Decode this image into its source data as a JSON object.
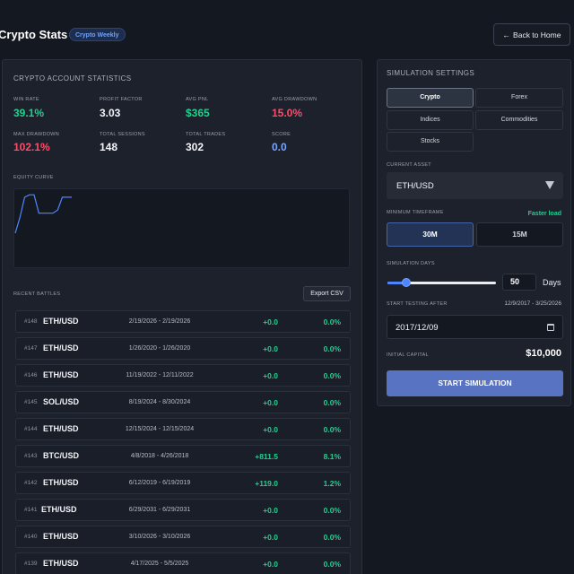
{
  "header": {
    "title": "Crypto Stats",
    "badge": "Crypto Weekly",
    "back_label": "Back to Home",
    "back_icon": "arrow-left-icon"
  },
  "stats": {
    "section_title": "CRYPTO ACCOUNT STATISTICS",
    "items": [
      {
        "label": "WIN RATE",
        "value": "39.1%",
        "color": "#1fd18f"
      },
      {
        "label": "PROFIT FACTOR",
        "value": "3.03",
        "color": "#f2f4f8"
      },
      {
        "label": "AVG PNL",
        "value": "$365",
        "color": "#1fd18f"
      },
      {
        "label": "AVG DRAWDOWN",
        "value": "15.0%",
        "color": "#ff4b6b"
      },
      {
        "label": "MAX DRAWDOWN",
        "value": "102.1%",
        "color": "#ff4b6b"
      },
      {
        "label": "TOTAL SESSIONS",
        "value": "148",
        "color": "#f2f4f8"
      },
      {
        "label": "TOTAL TRADES",
        "value": "302",
        "color": "#f2f4f8"
      },
      {
        "label": "SCORE",
        "value": "0.0",
        "color": "#7aa5ff"
      }
    ]
  },
  "equity": {
    "title": "EQUITY CURVE",
    "line_color": "#4f86ff",
    "points": [
      0.55,
      0.35,
      0.1,
      0.07,
      0.07,
      0.3,
      0.3,
      0.3,
      0.3,
      0.26,
      0.1,
      0.1,
      0.1
    ]
  },
  "battles": {
    "title": "RECENT BATTLES",
    "export_label": "Export CSV",
    "rows": [
      {
        "id": "#148",
        "asset": "ETH/USD",
        "dates": "2/19/2026 - 2/19/2026",
        "pnl": "+0.0",
        "pct": "0.0%"
      },
      {
        "id": "#147",
        "asset": "ETH/USD",
        "dates": "1/26/2020 - 1/26/2020",
        "pnl": "+0.0",
        "pct": "0.0%"
      },
      {
        "id": "#146",
        "asset": "ETH/USD",
        "dates": "11/19/2022 - 12/11/2022",
        "pnl": "+0.0",
        "pct": "0.0%"
      },
      {
        "id": "#145",
        "asset": "SOL/USD",
        "dates": "8/19/2024 - 8/30/2024",
        "pnl": "+0.0",
        "pct": "0.0%"
      },
      {
        "id": "#144",
        "asset": "ETH/USD",
        "dates": "12/15/2024 - 12/15/2024",
        "pnl": "+0.0",
        "pct": "0.0%"
      },
      {
        "id": "#143",
        "asset": "BTC/USD",
        "dates": "4/8/2018 - 4/26/2018",
        "pnl": "+811.5",
        "pct": "8.1%"
      },
      {
        "id": "#142",
        "asset": "ETH/USD",
        "dates": "6/12/2019 - 6/19/2019",
        "pnl": "+119.0",
        "pct": "1.2%"
      },
      {
        "id": "#141",
        "asset": "ETH/USD",
        "dates": "6/29/2031 - 6/29/2031",
        "pnl": "+0.0",
        "pct": "0.0%"
      },
      {
        "id": "#140",
        "asset": "ETH/USD",
        "dates": "3/10/2026 - 3/10/2026",
        "pnl": "+0.0",
        "pct": "0.0%"
      },
      {
        "id": "#139",
        "asset": "ETH/USD",
        "dates": "4/17/2025 - 5/5/2025",
        "pnl": "+0.0",
        "pct": "0.0%"
      }
    ]
  },
  "simulation": {
    "title": "SIMULATION SETTINGS",
    "tabs": [
      {
        "label": "Crypto",
        "active": true
      },
      {
        "label": "Forex",
        "active": false
      },
      {
        "label": "Indices",
        "active": false
      },
      {
        "label": "Commodities",
        "active": false
      },
      {
        "label": "Stocks",
        "active": false
      }
    ],
    "asset_label": "CURRENT ASSET",
    "asset_value": "ETH/USD",
    "timeframe_label": "MINIMUM TIMEFRAME",
    "timeframe_hint": "Faster load",
    "timeframes": [
      {
        "label": "30M",
        "active": true
      },
      {
        "label": "15M",
        "active": false
      }
    ],
    "days_label": "SIMULATION DAYS",
    "days_value": "50",
    "days_unit": "Days",
    "slider_fraction": 0.17,
    "start_label": "START TESTING AFTER",
    "start_range": "12/9/2017 - 3/25/2026",
    "start_value": "2017/12/09",
    "capital_label": "INITIAL CAPITAL",
    "capital_value": "$10,000",
    "submit_label": "START SIMULATION"
  }
}
